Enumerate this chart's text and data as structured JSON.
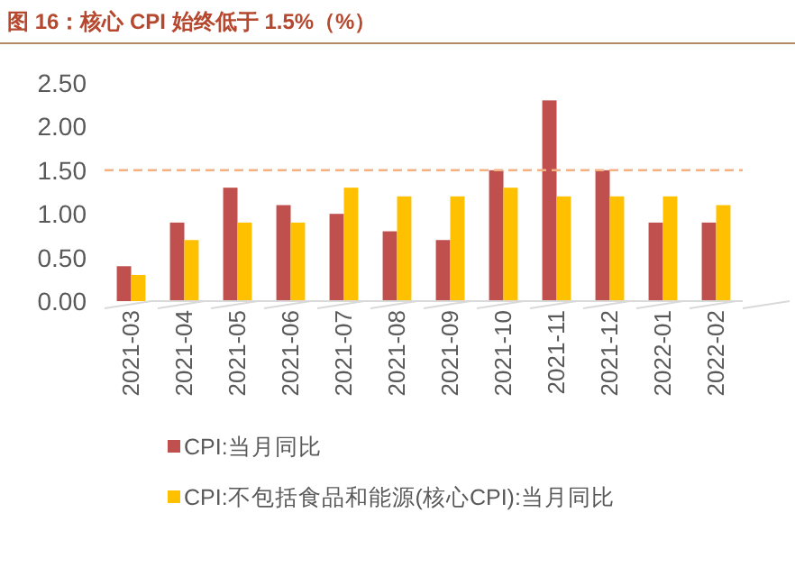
{
  "chart_data": {
    "type": "bar",
    "title": "图 16：核心 CPI 始终低于 1.5%（%）",
    "categories": [
      "2021-03",
      "2021-04",
      "2021-05",
      "2021-06",
      "2021-07",
      "2021-08",
      "2021-09",
      "2021-10",
      "2021-11",
      "2021-12",
      "2022-01",
      "2022-02"
    ],
    "series": [
      {
        "name": "CPI:当月同比",
        "color": "#c0504d",
        "values": [
          0.4,
          0.9,
          1.3,
          1.1,
          1.0,
          0.8,
          0.7,
          1.5,
          2.3,
          1.5,
          0.9,
          0.9
        ]
      },
      {
        "name": "CPI:不包括食品和能源(核心CPI):当月同比",
        "color": "#ffc000",
        "values": [
          0.3,
          0.7,
          0.9,
          0.9,
          1.3,
          1.2,
          1.2,
          1.3,
          1.2,
          1.2,
          1.2,
          1.1
        ]
      }
    ],
    "ylim": [
      0,
      2.5
    ],
    "yticks": [
      {
        "value": 0,
        "label": "0.00"
      },
      {
        "value": 0.5,
        "label": "0.50"
      },
      {
        "value": 1,
        "label": "1.00"
      },
      {
        "value": 1.5,
        "label": "1.50"
      },
      {
        "value": 2,
        "label": "2.00"
      },
      {
        "value": 2.5,
        "label": "2.50"
      }
    ],
    "ref_lines": [
      {
        "axis": "y",
        "value": 1.5,
        "color": "#f4b183",
        "line_style": "dashed"
      }
    ],
    "grid": false,
    "legend": "bottom"
  }
}
